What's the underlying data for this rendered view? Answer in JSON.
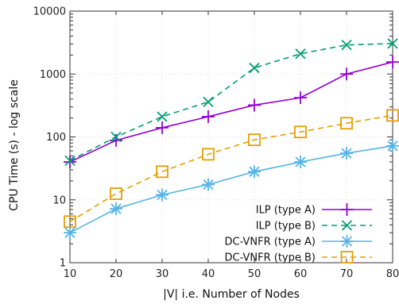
{
  "chart_data": {
    "type": "line",
    "xlabel": "|V| i.e. Number of Nodes",
    "ylabel": "CPU Time (s) - log scale",
    "yscale": "log",
    "xlim": [
      10,
      80
    ],
    "ylim": [
      1,
      10000
    ],
    "x": [
      10,
      20,
      30,
      40,
      50,
      60,
      70,
      80
    ],
    "xticks": [
      "10",
      "20",
      "30",
      "40",
      "50",
      "60",
      "70",
      "80"
    ],
    "yticks": [
      {
        "value": 1,
        "label": "1"
      },
      {
        "value": 10,
        "label": "10"
      },
      {
        "value": 100,
        "label": "100"
      },
      {
        "value": 1000,
        "label": "1000"
      },
      {
        "value": 10000,
        "label": "10000"
      }
    ],
    "grid": true,
    "legend_position": "bottom-right",
    "series": [
      {
        "name": "ILP (type A)",
        "color": "#9400d3",
        "dash": "solid",
        "marker": "plus",
        "values": [
          40,
          88,
          140,
          210,
          320,
          420,
          1000,
          1550
        ]
      },
      {
        "name": "ILP (type B)",
        "color": "#009e73",
        "dash": "dashed",
        "marker": "cross",
        "values": [
          42,
          100,
          210,
          360,
          1250,
          2100,
          2900,
          3050
        ]
      },
      {
        "name": "DC-VNFR (type A)",
        "color": "#56b4e9",
        "dash": "solid",
        "marker": "star",
        "values": [
          3,
          7.2,
          12,
          17.5,
          28,
          40,
          55,
          72
        ]
      },
      {
        "name": "DC-VNFR (type B)",
        "color": "#e69f00",
        "dash": "dashed",
        "marker": "square",
        "values": [
          4.5,
          12.5,
          28,
          53,
          90,
          120,
          165,
          220
        ]
      }
    ]
  }
}
